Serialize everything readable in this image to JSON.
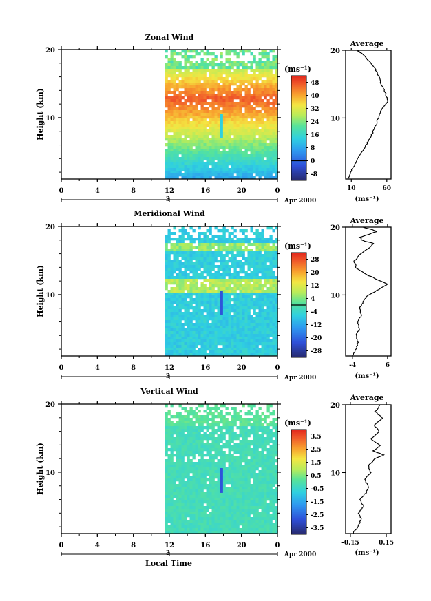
{
  "figure": {
    "xlabel": "Local Time",
    "date_label": "Apr 2000",
    "date_day": "3",
    "height_label": "Height (km)",
    "unit_label": "(ms⁻¹)",
    "average_title": "Average"
  },
  "chart_data": [
    {
      "type": "heatmap",
      "title": "Zonal Wind",
      "ylabel": "Height (km)",
      "xlabel": "Local Time",
      "x_ticks": [
        "0",
        "4",
        "8",
        "12",
        "16",
        "20",
        "0"
      ],
      "x_range": [
        0,
        24
      ],
      "data_x_range": [
        11.5,
        24
      ],
      "ylim": [
        1,
        20
      ],
      "y_ticks": [
        10,
        20
      ],
      "colorbar": {
        "label": "(ms⁻¹)",
        "ticks": [
          "48",
          "40",
          "32",
          "24",
          "16",
          "8",
          "0",
          "-8"
        ],
        "range": [
          -12,
          52
        ],
        "zero_line": 0
      },
      "profile": {
        "title": "Average",
        "x_ticks": [
          10,
          60
        ],
        "xlim": [
          2,
          66
        ],
        "xlabel": "(ms⁻¹)",
        "points": [
          [
            5,
            1
          ],
          [
            9,
            2
          ],
          [
            14,
            3
          ],
          [
            19,
            4
          ],
          [
            25,
            5
          ],
          [
            31,
            6
          ],
          [
            36,
            7
          ],
          [
            41,
            8
          ],
          [
            45,
            9
          ],
          [
            48,
            10
          ],
          [
            52,
            11
          ],
          [
            56,
            11.8
          ],
          [
            61,
            12.4
          ],
          [
            60,
            13
          ],
          [
            57,
            14
          ],
          [
            52,
            15
          ],
          [
            49,
            16
          ],
          [
            45,
            17
          ],
          [
            39,
            18
          ],
          [
            30,
            19
          ],
          [
            22,
            19.7
          ],
          [
            18,
            20
          ]
        ]
      }
    },
    {
      "type": "heatmap",
      "title": "Meridional Wind",
      "ylabel": "Height (km)",
      "xlabel": "Local Time",
      "x_ticks": [
        "0",
        "4",
        "8",
        "12",
        "16",
        "20",
        "0"
      ],
      "x_range": [
        0,
        24
      ],
      "data_x_range": [
        11.5,
        24
      ],
      "ylim": [
        1,
        20
      ],
      "y_ticks": [
        10,
        20
      ],
      "colorbar": {
        "label": "(ms⁻¹)",
        "ticks": [
          "28",
          "20",
          "12",
          "4",
          "-4",
          "-12",
          "-20",
          "-28"
        ],
        "range": [
          -32,
          32
        ],
        "zero_line": 0
      },
      "profile": {
        "title": "Average",
        "x_ticks": [
          -4,
          6
        ],
        "xlim": [
          -6,
          7
        ],
        "xlabel": "(ms⁻¹)",
        "points": [
          [
            -4,
            1
          ],
          [
            -3,
            2
          ],
          [
            -2.5,
            3
          ],
          [
            -3,
            4
          ],
          [
            -2,
            5
          ],
          [
            -2.5,
            6
          ],
          [
            -1.5,
            7
          ],
          [
            -2,
            8
          ],
          [
            -1,
            9
          ],
          [
            0.5,
            10
          ],
          [
            3.5,
            10.8
          ],
          [
            6,
            11.6
          ],
          [
            3,
            12.3
          ],
          [
            0,
            13
          ],
          [
            -3,
            14
          ],
          [
            -3.5,
            15
          ],
          [
            -2,
            16
          ],
          [
            1,
            17
          ],
          [
            2,
            17.6
          ],
          [
            -1,
            18
          ],
          [
            -2,
            18.5
          ],
          [
            1,
            19
          ],
          [
            3,
            19.4
          ],
          [
            -1,
            20
          ]
        ]
      }
    },
    {
      "type": "heatmap",
      "title": "Vertical Wind",
      "ylabel": "Height (km)",
      "xlabel": "Local Time",
      "x_ticks": [
        "0",
        "4",
        "8",
        "12",
        "16",
        "20",
        "0"
      ],
      "x_range": [
        0,
        24
      ],
      "data_x_range": [
        11.5,
        24
      ],
      "ylim": [
        1,
        20
      ],
      "y_ticks": [
        10,
        20
      ],
      "colorbar": {
        "label": "(ms⁻¹)",
        "ticks": [
          "3.5",
          "2.5",
          "1.5",
          "0.5",
          "-0.5",
          "-1.5",
          "-2.5",
          "-3.5"
        ],
        "range": [
          -4,
          4
        ]
      },
      "profile": {
        "title": "Average",
        "x_ticks": [
          "-0.15",
          "0.15"
        ],
        "xlim": [
          -0.19,
          0.19
        ],
        "xlabel": "(ms⁻¹)",
        "points": [
          [
            -0.13,
            1
          ],
          [
            -0.09,
            2
          ],
          [
            -0.06,
            3
          ],
          [
            -0.08,
            4
          ],
          [
            -0.04,
            5
          ],
          [
            -0.07,
            6
          ],
          [
            -0.02,
            7
          ],
          [
            0.0,
            8
          ],
          [
            -0.03,
            9
          ],
          [
            0.02,
            10
          ],
          [
            0.0,
            11
          ],
          [
            0.05,
            12
          ],
          [
            0.13,
            12.6
          ],
          [
            0.04,
            13.2
          ],
          [
            0.1,
            14
          ],
          [
            0.02,
            15
          ],
          [
            0.09,
            16
          ],
          [
            0.05,
            17
          ],
          [
            0.12,
            18
          ],
          [
            0.06,
            19
          ],
          [
            0.1,
            20
          ]
        ]
      }
    }
  ]
}
